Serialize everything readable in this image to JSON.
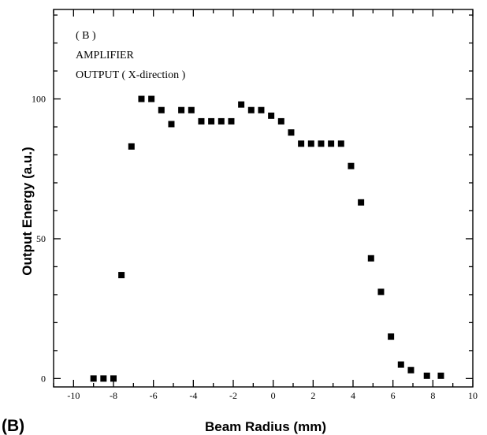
{
  "chart_data": {
    "type": "scatter",
    "panel_label": "(B)",
    "annotations": [
      "( B )",
      "AMPLIFIER",
      "OUTPUT ( X-direction )"
    ],
    "xlabel": "Beam Radius (mm)",
    "ylabel": "Output Energy  (a.u.)",
    "xlim": [
      -11,
      10
    ],
    "ylim": [
      -3,
      132
    ],
    "x_ticks": [
      -10,
      -8,
      -6,
      -4,
      -2,
      0,
      2,
      4,
      6,
      8,
      10
    ],
    "x_tick_labels": [
      "-10",
      "-8",
      "-6",
      "-4",
      "-2",
      "0",
      "2",
      "4",
      "6",
      "8",
      "10"
    ],
    "y_ticks": [
      0,
      50,
      100
    ],
    "y_tick_labels": [
      "0",
      "50",
      "100"
    ],
    "grid": false,
    "marker": "filled-square",
    "marker_color": "#000000",
    "series": [
      {
        "x": [
          -9.0,
          -8.5,
          -8.0,
          -7.6,
          -7.1,
          -6.6,
          -6.1,
          -5.6,
          -5.1,
          -4.6,
          -4.1,
          -3.6,
          -3.1,
          -2.6,
          -2.1,
          -1.6,
          -1.1,
          -0.6,
          -0.1,
          0.4,
          0.9,
          1.4,
          1.9,
          2.4,
          2.9,
          3.4,
          3.9,
          4.4,
          4.9,
          5.4,
          5.9,
          6.4,
          6.9,
          7.7,
          8.4
        ],
        "y": [
          0,
          0,
          0,
          37,
          83,
          100,
          100,
          96,
          91,
          96,
          96,
          92,
          92,
          92,
          92,
          98,
          96,
          96,
          94,
          92,
          88,
          84,
          84,
          84,
          84,
          84,
          76,
          63,
          43,
          31,
          15,
          5,
          3,
          1,
          1
        ]
      }
    ]
  }
}
